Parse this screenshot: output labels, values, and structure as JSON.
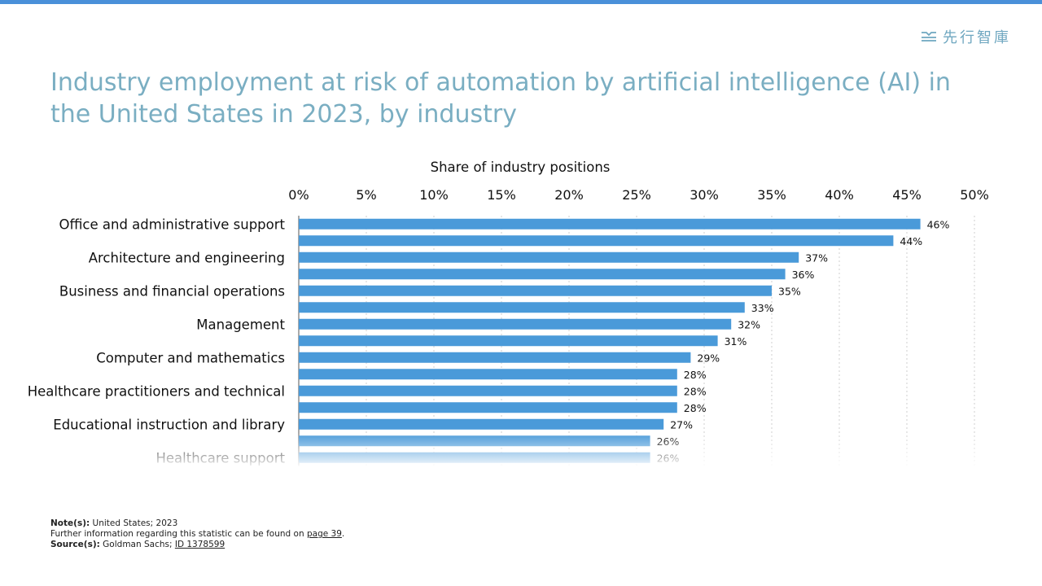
{
  "colors": {
    "accent": "#4a90d9",
    "bar": "#4a9ad9",
    "title": "#7aaec2",
    "brand": "#6fa7c0"
  },
  "brand": {
    "icon": "brand-logo-icon",
    "text": "先行智庫"
  },
  "title": "Industry employment at risk of automation by artificial intelligence (AI) in the United States in 2023, by industry",
  "chart_data": {
    "type": "bar",
    "orientation": "horizontal",
    "xlabel": "Share of industry positions",
    "xlim": [
      0,
      50
    ],
    "xticks": [
      "0%",
      "5%",
      "10%",
      "15%",
      "20%",
      "25%",
      "30%",
      "35%",
      "40%",
      "45%",
      "50%"
    ],
    "grid": true,
    "categories": [
      "Office and administrative support",
      "",
      "Architecture and engineering",
      "",
      "Business and financial operations",
      "",
      "Management",
      "",
      "Computer and mathematics",
      "",
      "Healthcare practitioners and technical",
      "",
      "Educational instruction and library",
      "",
      "Healthcare support"
    ],
    "values": [
      46,
      44,
      37,
      36,
      35,
      33,
      32,
      31,
      29,
      28,
      28,
      28,
      27,
      26,
      26
    ],
    "value_labels": [
      "46%",
      "44%",
      "37%",
      "36%",
      "35%",
      "33%",
      "32%",
      "31%",
      "29%",
      "28%",
      "28%",
      "28%",
      "27%",
      "26%",
      "26%"
    ]
  },
  "footer": {
    "note_label": "Note(s):",
    "note_text": "United States; 2023",
    "further_text": "Further information regarding this statistic can be found on",
    "further_link": "page 39",
    "source_label": "Source(s):",
    "source_text": "Goldman Sachs;",
    "source_link": "ID 1378599"
  }
}
